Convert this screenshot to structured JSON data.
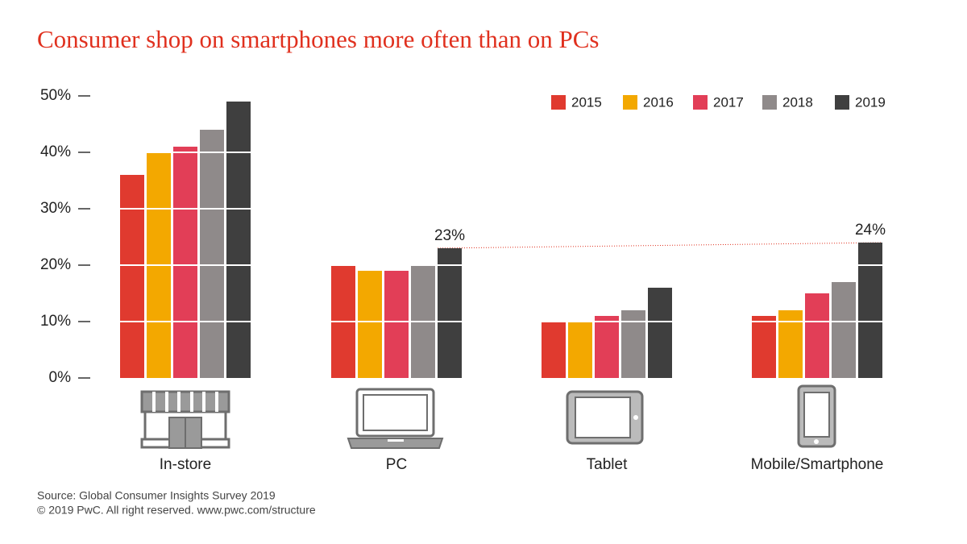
{
  "chart_data": {
    "type": "bar",
    "title": "Consumer shop on smartphones more often than on PCs",
    "categories": [
      "In-store",
      "PC",
      "Tablet",
      "Mobile/Smartphone"
    ],
    "series": [
      {
        "name": "2015",
        "color": "#e03a2f",
        "values": [
          36,
          20,
          10,
          11
        ]
      },
      {
        "name": "2016",
        "color": "#f3a800",
        "values": [
          40,
          19,
          10,
          12
        ]
      },
      {
        "name": "2017",
        "color": "#e23e57",
        "values": [
          41,
          19,
          11,
          15
        ]
      },
      {
        "name": "2018",
        "color": "#8f8a8a",
        "values": [
          44,
          20,
          12,
          17
        ]
      },
      {
        "name": "2019",
        "color": "#3f3f3f",
        "values": [
          49,
          23,
          16,
          24
        ],
        "value_labels": [
          null,
          "23%",
          null,
          "24%"
        ]
      }
    ],
    "ylim": [
      0,
      50
    ],
    "yticks": [
      {
        "value": 0,
        "label": "0%"
      },
      {
        "value": 10,
        "label": "10%"
      },
      {
        "value": 20,
        "label": "20%"
      },
      {
        "value": 30,
        "label": "30%"
      },
      {
        "value": 40,
        "label": "40%"
      },
      {
        "value": 50,
        "label": "50%"
      }
    ],
    "grid": true,
    "legend": "top-right",
    "notes": [
      "Source: Global Consumer Insights Survey 2019",
      "© 2019 PwC. All right reserved. www.pwc.com/structure"
    ]
  }
}
